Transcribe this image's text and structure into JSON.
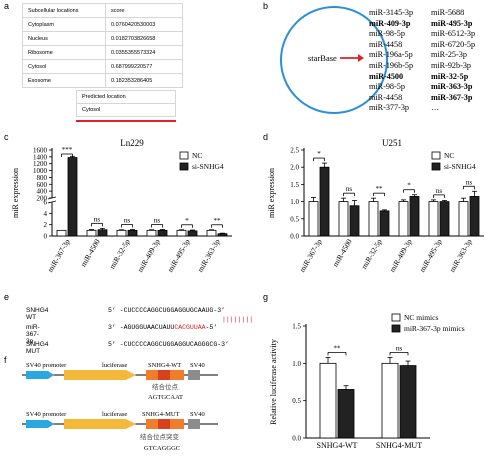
{
  "panel_labels": {
    "a": "a",
    "b": "b",
    "c": "c",
    "d": "d",
    "e": "e",
    "f": "f",
    "g": "g"
  },
  "panel_a": {
    "table": {
      "headers": [
        "Subcellular locations",
        "score"
      ],
      "rows": [
        [
          "Cytoplasm",
          "0.0760420530003"
        ],
        [
          "Nucleus",
          "0.0182703826658"
        ],
        [
          "Ribosome",
          "0.0355355573324"
        ],
        [
          "Cytosol",
          "0.687999220577"
        ],
        [
          "Exosome",
          "0.182353286405"
        ]
      ]
    },
    "predicted": {
      "header": "Predicted location",
      "value": "Cytosol"
    },
    "underline_color": "#e0202a"
  },
  "panel_b": {
    "circle_label": "starBase",
    "arrow_color": "#e0202a",
    "col1": [
      {
        "t": "miR-3145-3p",
        "b": false
      },
      {
        "t": "miR-409-3p",
        "b": true
      },
      {
        "t": "miR-98-5p",
        "b": false
      },
      {
        "t": "miR-4458",
        "b": false
      },
      {
        "t": "miR-196a-5p",
        "b": false
      },
      {
        "t": "miR-196b-5p",
        "b": false
      },
      {
        "t": "miR-4500",
        "b": true
      },
      {
        "t": "miR-98-5p",
        "b": false
      },
      {
        "t": "miR-4458",
        "b": false
      },
      {
        "t": "miR-377-3p",
        "b": false
      }
    ],
    "col2": [
      {
        "t": "miR-5688",
        "b": false
      },
      {
        "t": "miR-495-3p",
        "b": true
      },
      {
        "t": "miR-6512-3p",
        "b": false
      },
      {
        "t": "miR-6720-5p",
        "b": false
      },
      {
        "t": "miR-25-3p",
        "b": false
      },
      {
        "t": "miR-92b-3p",
        "b": false
      },
      {
        "t": "miR-32-5p",
        "b": true
      },
      {
        "t": "miR-363-3p",
        "b": true
      },
      {
        "t": "miR-367-3p",
        "b": true
      },
      {
        "t": "…",
        "b": false
      }
    ]
  },
  "chart_data": [
    {
      "id": "c",
      "type": "bar",
      "title": "Ln229",
      "ylabel": "miR expression",
      "categories": [
        "miR-367-3p",
        "miR-4500",
        "miR-32-5p",
        "miR-409-3p",
        "miR-495-3p",
        "miR-363-3p"
      ],
      "series": [
        {
          "name": "NC",
          "values": [
            1,
            1,
            1,
            1,
            1,
            1
          ]
        },
        {
          "name": "si-SNHG4",
          "values": [
            1380,
            1.1,
            1.0,
            1.0,
            0.9,
            0.4
          ]
        }
      ],
      "errors": [
        [
          0,
          0.15,
          0.1,
          0.1,
          0.1,
          0.1
        ],
        [
          35,
          0.25,
          0.15,
          0.15,
          0.15,
          0.1
        ]
      ],
      "yticks": [
        "0",
        "2",
        "4",
        "6",
        "200",
        "400",
        "600",
        "800",
        "1000",
        "1200",
        "1400",
        "1600"
      ],
      "significance": [
        "***",
        "ns",
        "ns",
        "ns",
        "*",
        "**"
      ],
      "axis_break": true
    },
    {
      "id": "d",
      "type": "bar",
      "title": "U251",
      "ylabel": "miR expression",
      "categories": [
        "miR-367-3p",
        "miR-4500",
        "miR-32-5p",
        "miR-409-3p",
        "miR-495-3p",
        "miR-363-3p"
      ],
      "series": [
        {
          "name": "NC",
          "values": [
            1,
            1,
            1,
            1,
            1,
            1
          ]
        },
        {
          "name": "si-SNHG4",
          "values": [
            2.0,
            0.88,
            0.73,
            1.15,
            1.0,
            1.15
          ]
        }
      ],
      "errors": [
        [
          0.12,
          0.1,
          0.1,
          0.05,
          0.05,
          0.1
        ],
        [
          0.12,
          0.15,
          0.03,
          0.05,
          0.03,
          0.15
        ]
      ],
      "ylim": [
        0,
        2.5
      ],
      "yticks": [
        "0.0",
        "0.5",
        "1.0",
        "1.5",
        "2.0",
        "2.5"
      ],
      "significance": [
        "*",
        "ns",
        "**",
        "*",
        "ns",
        "ns"
      ]
    },
    {
      "id": "g",
      "type": "bar",
      "title": "",
      "ylabel": "Relative luciferase activity",
      "categories": [
        "SNHG4-WT",
        "SNHG4-MUT"
      ],
      "series": [
        {
          "name": "NC mimics",
          "values": [
            1.0,
            1.0
          ]
        },
        {
          "name": "miR-367-3p mimics",
          "values": [
            0.65,
            0.97
          ]
        }
      ],
      "errors": [
        [
          0.08,
          0.08
        ],
        [
          0.05,
          0.06
        ]
      ],
      "ylim": [
        0,
        1.5
      ],
      "yticks": [
        "0.0",
        "0.5",
        "1.0",
        "1.5"
      ],
      "significance": [
        "**",
        "ns"
      ]
    }
  ],
  "panel_e": {
    "rows": [
      {
        "label": "SNHG4 WT",
        "seq": "5’ -CUCCCCAGGCUGGAGGUGCAAUG-3’"
      },
      {
        "label": "miR-367-3p",
        "seq_black": "3’ -AGUGGUAACUAUU",
        "seq_red": "CACGUUAA",
        "seq_end": "-5’"
      },
      {
        "label": "SNHG4 MUT",
        "seq": "5’ -CUCCCCAGGCUGGAGGUCAGGGCG-3’"
      }
    ],
    "pairing": "||||||||",
    "red_color": "#e0202a"
  },
  "panel_f": {
    "constructs": [
      {
        "promoter": "SV40 promoter",
        "luc": "luciferase",
        "insert": "SNHG4-WT",
        "sv": "SV40",
        "chinese": "结合位点",
        "site": "AGTGCAAT"
      },
      {
        "promoter": "SV40 promoter",
        "luc": "luciferase",
        "insert": "SNHG4-MUT",
        "sv": "SV40",
        "chinese": "结合位点突变",
        "site": "GTCAGGGC"
      }
    ],
    "colors": {
      "promoter": "#2aa7e0",
      "luc": "#f4b93a",
      "insert": "#f07d2a",
      "site": "#d8401e",
      "sv": "#8c8c8c"
    }
  }
}
